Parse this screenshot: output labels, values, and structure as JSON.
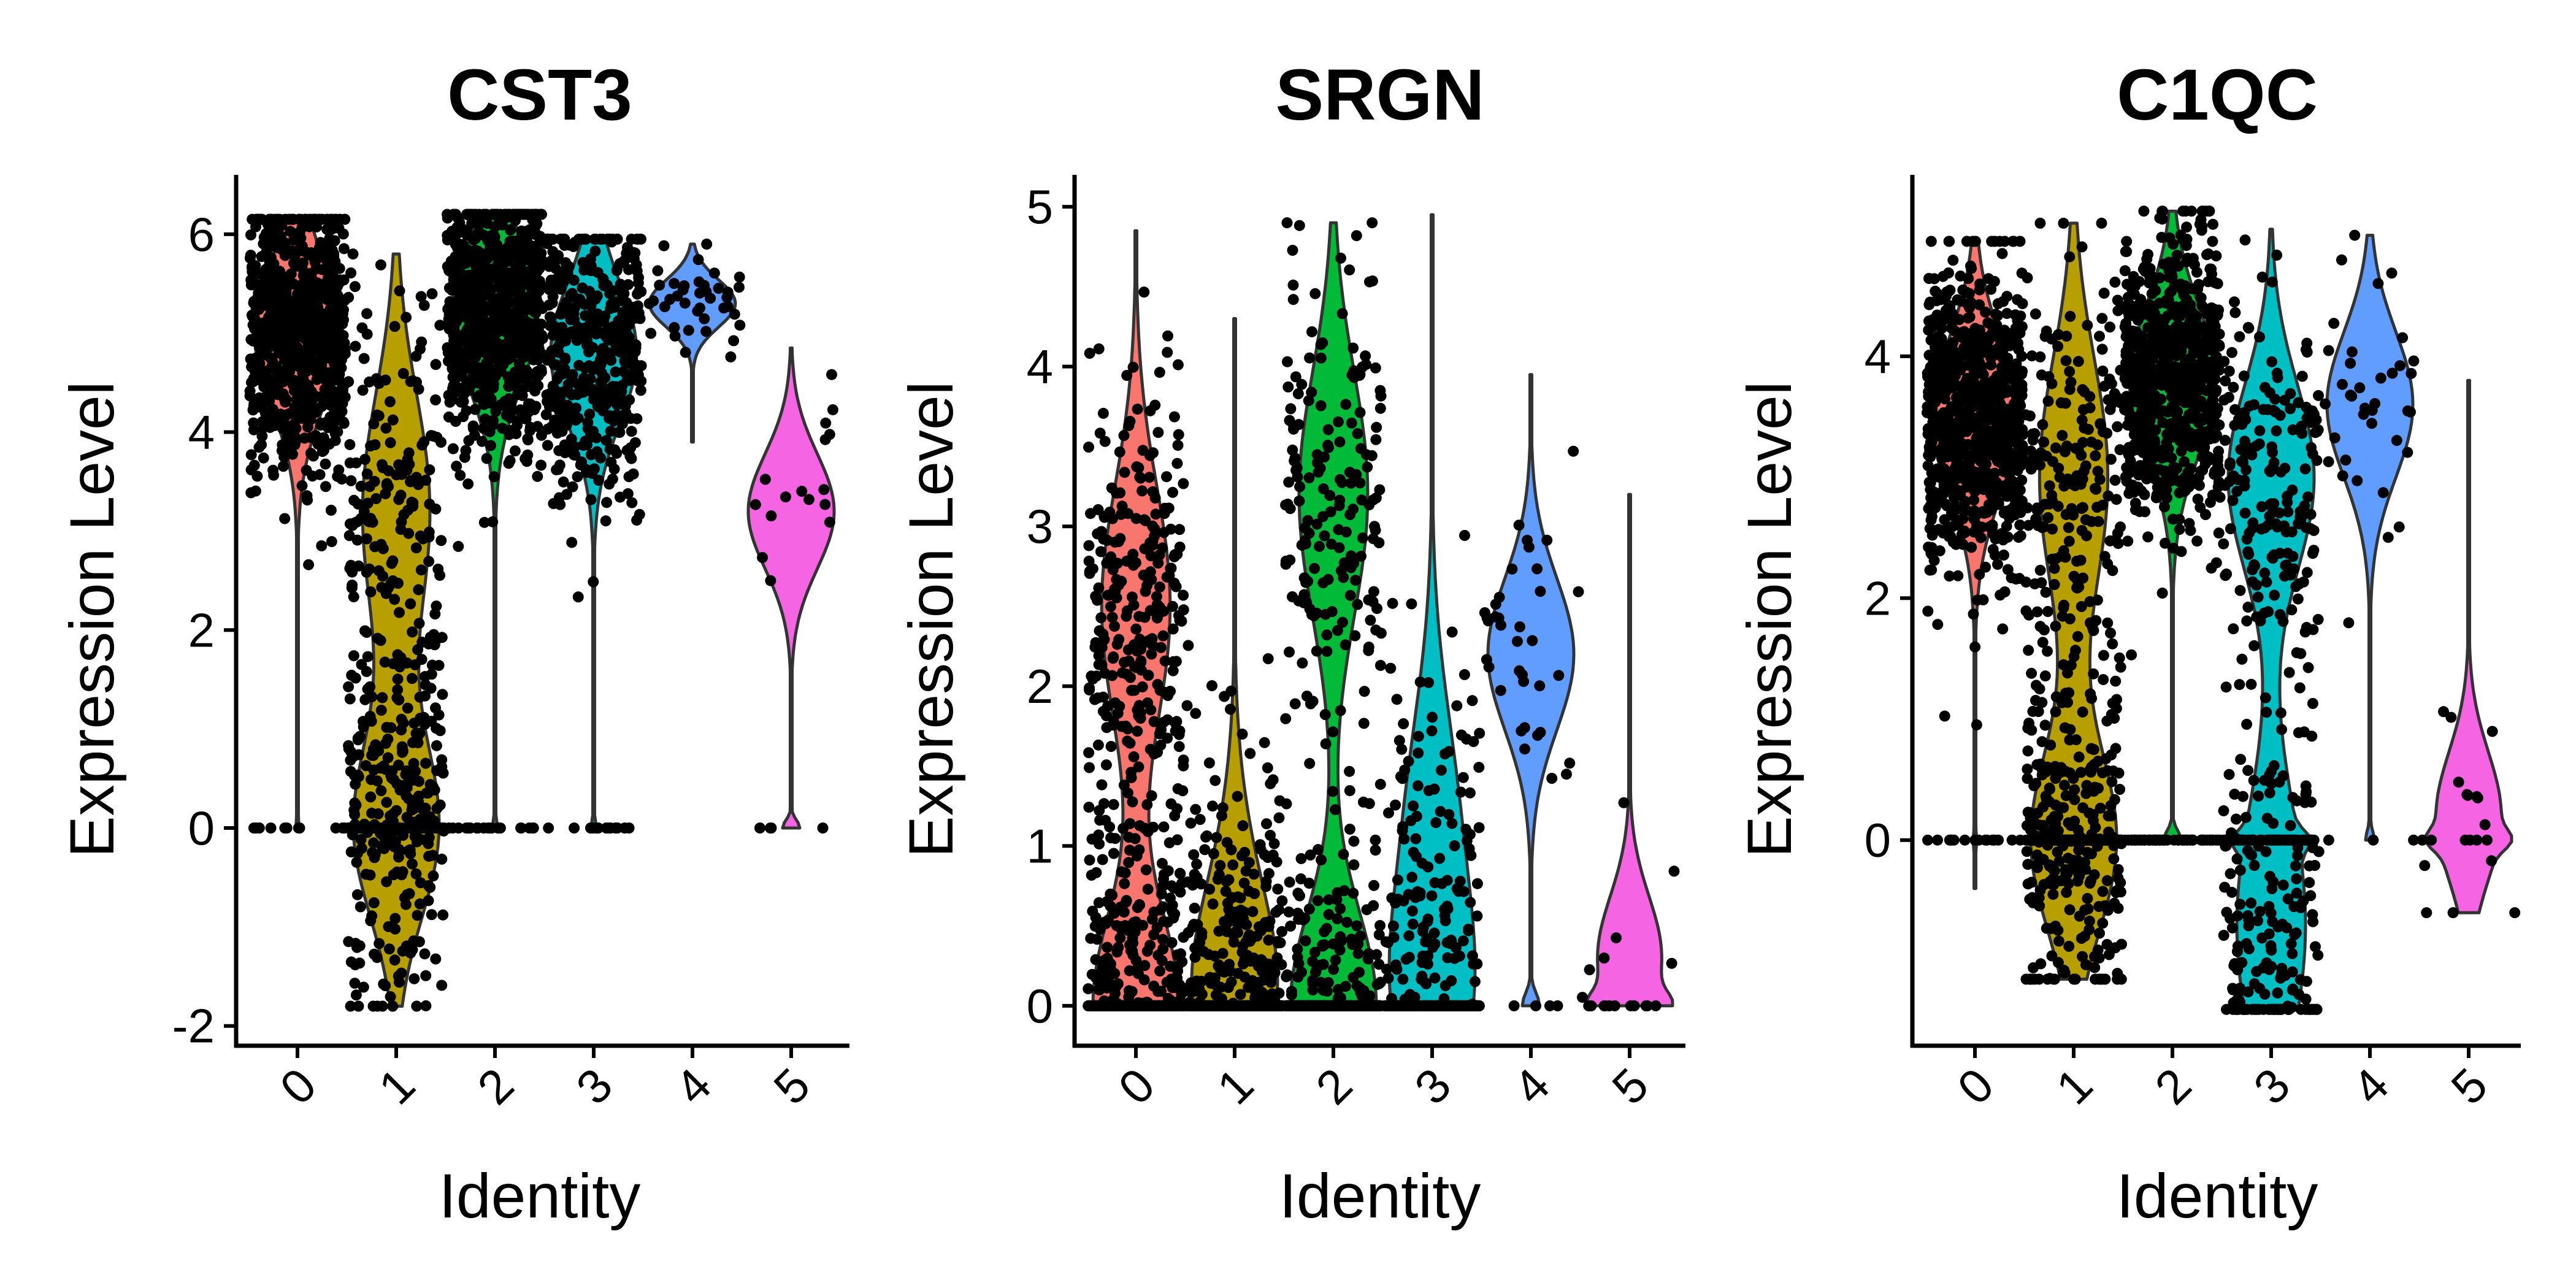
{
  "chart_data": [
    {
      "type": "violin",
      "title": "CST3",
      "xlabel": "Identity",
      "ylabel": "Expression Level",
      "categories": [
        "0",
        "1",
        "2",
        "3",
        "4",
        "5"
      ],
      "x_ticks": [
        "0",
        "1",
        "2",
        "3",
        "4",
        "5"
      ],
      "y_ticks": [
        -2,
        0,
        2,
        4,
        6
      ],
      "ylim": [
        -2.2,
        6.6
      ],
      "colors": [
        "#F8766D",
        "#B79F00",
        "#00BA38",
        "#00BFC4",
        "#619CFF",
        "#F564E3"
      ],
      "groups": [
        {
          "id": "0",
          "min": 0.0,
          "max": 6.15,
          "mode": 5.0,
          "zero_fraction": 0.02,
          "n_cells": 1100
        },
        {
          "id": "1",
          "min": -1.8,
          "max": 5.8,
          "mode": 0.0,
          "second_mode": 3.2,
          "zero_fraction": 0.45,
          "n_cells": 900
        },
        {
          "id": "2",
          "min": 0.0,
          "max": 6.2,
          "mode": 5.2,
          "zero_fraction": 0.03,
          "n_cells": 750
        },
        {
          "id": "3",
          "min": 0.0,
          "max": 5.95,
          "mode": 4.8,
          "zero_fraction": 0.03,
          "n_cells": 450
        },
        {
          "id": "4",
          "min": 3.9,
          "max": 5.9,
          "mode": 5.3,
          "zero_fraction": 0.0,
          "n_cells": 40
        },
        {
          "id": "5",
          "min": 0.0,
          "max": 4.85,
          "mode": 3.2,
          "zero_fraction": 0.1,
          "n_cells": 20
        }
      ]
    },
    {
      "type": "violin",
      "title": "SRGN",
      "xlabel": "Identity",
      "ylabel": "Expression Level",
      "categories": [
        "0",
        "1",
        "2",
        "3",
        "4",
        "5"
      ],
      "x_ticks": [
        "0",
        "1",
        "2",
        "3",
        "4",
        "5"
      ],
      "y_ticks": [
        0,
        1,
        2,
        3,
        4,
        5
      ],
      "ylim": [
        -0.25,
        5.2
      ],
      "colors": [
        "#F8766D",
        "#B79F00",
        "#00BA38",
        "#00BFC4",
        "#619CFF",
        "#F564E3"
      ],
      "groups": [
        {
          "id": "0",
          "min": 0.0,
          "max": 4.85,
          "mode": 0.0,
          "second_mode": 2.5,
          "zero_fraction": 0.2,
          "n_cells": 1100
        },
        {
          "id": "1",
          "min": 0.0,
          "max": 4.3,
          "mode": 0.0,
          "second_mode": 0.5,
          "zero_fraction": 0.6,
          "n_cells": 900
        },
        {
          "id": "2",
          "min": 0.0,
          "max": 4.9,
          "mode": 0.0,
          "second_mode": 3.2,
          "zero_fraction": 0.45,
          "n_cells": 750
        },
        {
          "id": "3",
          "min": 0.0,
          "max": 4.95,
          "mode": 0.0,
          "second_mode": 1.1,
          "zero_fraction": 0.5,
          "n_cells": 450
        },
        {
          "id": "4",
          "min": 0.0,
          "max": 3.95,
          "mode": 2.2,
          "zero_fraction": 0.1,
          "n_cells": 40
        },
        {
          "id": "5",
          "min": 0.0,
          "max": 3.2,
          "mode": 0.3,
          "zero_fraction": 0.3,
          "n_cells": 20
        }
      ]
    },
    {
      "type": "violin",
      "title": "C1QC",
      "xlabel": "Identity",
      "ylabel": "Expression Level",
      "categories": [
        "0",
        "1",
        "2",
        "3",
        "4",
        "5"
      ],
      "x_ticks": [
        "0",
        "1",
        "2",
        "3",
        "4",
        "5"
      ],
      "y_ticks": [
        0,
        2,
        4
      ],
      "ylim": [
        -1.7,
        5.5
      ],
      "colors": [
        "#F8766D",
        "#B79F00",
        "#00BA38",
        "#00BFC4",
        "#619CFF",
        "#F564E3"
      ],
      "groups": [
        {
          "id": "0",
          "min": -0.4,
          "max": 4.95,
          "mode": 3.5,
          "zero_fraction": 0.02,
          "n_cells": 1100
        },
        {
          "id": "1",
          "min": -1.15,
          "max": 5.1,
          "mode": 0.0,
          "second_mode": 3.0,
          "zero_fraction": 0.4,
          "n_cells": 900
        },
        {
          "id": "2",
          "min": 0.0,
          "max": 5.2,
          "mode": 3.8,
          "zero_fraction": 0.1,
          "n_cells": 750
        },
        {
          "id": "3",
          "min": -1.4,
          "max": 5.05,
          "mode": 3.0,
          "second_mode": -0.7,
          "zero_fraction": 0.15,
          "n_cells": 450
        },
        {
          "id": "4",
          "min": 0.0,
          "max": 5.0,
          "mode": 3.6,
          "zero_fraction": 0.05,
          "n_cells": 40
        },
        {
          "id": "5",
          "min": -0.6,
          "max": 3.8,
          "mode": 0.2,
          "zero_fraction": 0.2,
          "n_cells": 20
        }
      ]
    }
  ]
}
